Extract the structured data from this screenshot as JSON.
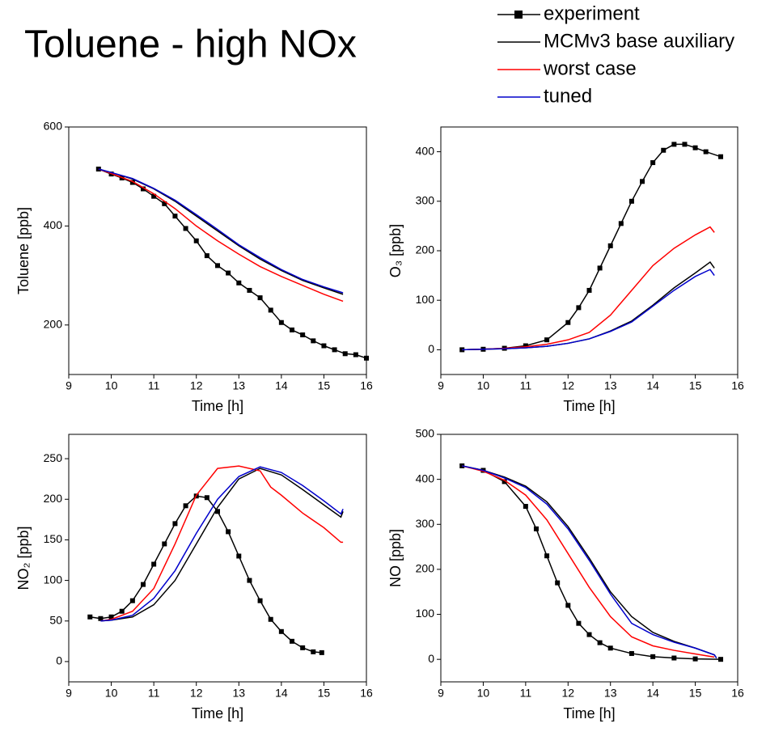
{
  "title": "Toluene - high NOx",
  "chart_data": [
    {
      "type": "line",
      "xlabel": "Time [h]",
      "ylabel": "Toluene [ppb]",
      "xlim": [
        9,
        16
      ],
      "ylim": [
        100,
        600
      ],
      "xticks": [
        9,
        10,
        11,
        12,
        13,
        14,
        15,
        16
      ],
      "yticks": [
        200,
        400,
        600
      ],
      "series": [
        {
          "name": "experiment",
          "color": "#000000",
          "marker": "square",
          "x": [
            9.7,
            10,
            10.25,
            10.5,
            10.75,
            11,
            11.25,
            11.5,
            11.75,
            12,
            12.25,
            12.5,
            12.75,
            13,
            13.25,
            13.5,
            13.75,
            14,
            14.25,
            14.5,
            14.75,
            15,
            15.25,
            15.5,
            15.75,
            16
          ],
          "values": [
            515,
            505,
            497,
            488,
            475,
            460,
            445,
            420,
            395,
            370,
            340,
            320,
            305,
            285,
            270,
            255,
            230,
            205,
            190,
            180,
            168,
            158,
            150,
            142,
            140,
            133
          ]
        },
        {
          "name": "MCMv3 base auxiliary",
          "color": "#000000",
          "x": [
            9.7,
            10,
            10.5,
            11,
            11.5,
            12,
            12.5,
            13,
            13.5,
            14,
            14.5,
            15,
            15.45
          ],
          "values": [
            515,
            508,
            495,
            475,
            450,
            420,
            390,
            360,
            333,
            310,
            290,
            275,
            262
          ]
        },
        {
          "name": "worst case",
          "color": "#ff0000",
          "x": [
            9.7,
            10,
            10.5,
            11,
            11.5,
            12,
            12.5,
            13,
            13.5,
            14,
            14.5,
            15,
            15.45
          ],
          "values": [
            515,
            506,
            490,
            465,
            435,
            400,
            370,
            343,
            318,
            298,
            280,
            262,
            248
          ]
        },
        {
          "name": "tuned",
          "color": "#0000cc",
          "x": [
            9.7,
            10,
            10.5,
            11,
            11.5,
            12,
            12.5,
            13,
            13.5,
            14,
            14.5,
            15,
            15.45
          ],
          "values": [
            515,
            508,
            496,
            476,
            452,
            423,
            393,
            362,
            336,
            312,
            292,
            277,
            265
          ]
        }
      ]
    },
    {
      "type": "line",
      "xlabel": "Time [h]",
      "ylabel": "O₃ [ppb]",
      "xlim": [
        9,
        16
      ],
      "ylim": [
        -50,
        450
      ],
      "xticks": [
        9,
        10,
        11,
        12,
        13,
        14,
        15,
        16
      ],
      "yticks": [
        0,
        100,
        200,
        300,
        400
      ],
      "series": [
        {
          "color": "#000000",
          "marker": "square",
          "x": [
            9.5,
            10,
            10.5,
            11,
            11.5,
            12,
            12.25,
            12.5,
            12.75,
            13,
            13.25,
            13.5,
            13.75,
            14,
            14.25,
            14.5,
            14.75,
            15,
            15.25,
            15.6
          ],
          "values": [
            0,
            1,
            3,
            8,
            20,
            55,
            85,
            120,
            165,
            210,
            255,
            300,
            340,
            378,
            403,
            415,
            415,
            408,
            400,
            390
          ]
        },
        {
          "color": "#000000",
          "x": [
            9.5,
            10,
            10.5,
            11,
            11.5,
            12,
            12.5,
            13,
            13.5,
            14,
            14.5,
            15,
            15.35,
            15.45
          ],
          "values": [
            0,
            1,
            2,
            4,
            7,
            13,
            22,
            38,
            58,
            90,
            125,
            155,
            177,
            165
          ]
        },
        {
          "color": "#ff0000",
          "x": [
            9.5,
            10,
            10.5,
            11,
            11.5,
            12,
            12.5,
            13,
            13.5,
            14,
            14.5,
            15,
            15.35,
            15.45
          ],
          "values": [
            0,
            1,
            3,
            6,
            11,
            20,
            35,
            70,
            120,
            170,
            205,
            232,
            248,
            237
          ]
        },
        {
          "color": "#0000cc",
          "x": [
            9.5,
            10,
            10.5,
            11,
            11.5,
            12,
            12.5,
            13,
            13.5,
            14,
            14.5,
            15,
            15.35,
            15.45
          ],
          "values": [
            0,
            1,
            2,
            4,
            7,
            13,
            22,
            37,
            56,
            88,
            120,
            148,
            162,
            150
          ]
        }
      ]
    },
    {
      "type": "line",
      "xlabel": "Time [h]",
      "ylabel": "NO₂ [ppb]",
      "xlim": [
        9,
        16
      ],
      "ylim": [
        -25,
        280
      ],
      "xticks": [
        9,
        10,
        11,
        12,
        13,
        14,
        15,
        16
      ],
      "yticks": [
        0,
        50,
        100,
        150,
        200,
        250
      ],
      "series": [
        {
          "color": "#000000",
          "marker": "square",
          "x": [
            9.5,
            9.75,
            10,
            10.25,
            10.5,
            10.75,
            11,
            11.25,
            11.5,
            11.75,
            12,
            12.25,
            12.5,
            12.75,
            13,
            13.25,
            13.5,
            13.75,
            14,
            14.25,
            14.5,
            14.75,
            14.95
          ],
          "values": [
            55,
            53,
            55,
            62,
            75,
            95,
            120,
            145,
            170,
            192,
            204,
            202,
            185,
            160,
            130,
            100,
            75,
            52,
            37,
            25,
            17,
            12,
            11
          ]
        },
        {
          "color": "#000000",
          "x": [
            9.75,
            10,
            10.5,
            11,
            11.5,
            12,
            12.5,
            13,
            13.5,
            14,
            14.5,
            15,
            15.4,
            15.45
          ],
          "values": [
            50,
            51,
            55,
            70,
            100,
            145,
            190,
            225,
            238,
            230,
            212,
            193,
            178,
            185
          ]
        },
        {
          "color": "#ff0000",
          "x": [
            9.75,
            10,
            10.5,
            11,
            11.5,
            12,
            12.5,
            13,
            13.5,
            13.75,
            14,
            14.5,
            15,
            15.4,
            15.45
          ],
          "values": [
            50,
            52,
            62,
            90,
            145,
            205,
            238,
            241,
            235,
            215,
            205,
            183,
            165,
            147,
            147
          ]
        },
        {
          "color": "#0000cc",
          "x": [
            9.75,
            10,
            10.5,
            11,
            11.5,
            12,
            12.5,
            13,
            13.5,
            14,
            14.5,
            15,
            15.4,
            15.45
          ],
          "values": [
            50,
            51,
            57,
            78,
            112,
            158,
            200,
            228,
            240,
            233,
            217,
            198,
            182,
            188
          ]
        }
      ]
    },
    {
      "type": "line",
      "xlabel": "Time [h]",
      "ylabel": "NO [ppb]",
      "xlim": [
        9,
        16
      ],
      "ylim": [
        -50,
        500
      ],
      "xticks": [
        9,
        10,
        11,
        12,
        13,
        14,
        15,
        16
      ],
      "yticks": [
        0,
        100,
        200,
        300,
        400,
        500
      ],
      "series": [
        {
          "color": "#000000",
          "marker": "square",
          "x": [
            9.5,
            10,
            10.5,
            11,
            11.25,
            11.5,
            11.75,
            12,
            12.25,
            12.5,
            12.75,
            13,
            13.5,
            14,
            14.5,
            15,
            15.6
          ],
          "values": [
            430,
            420,
            395,
            340,
            290,
            230,
            170,
            120,
            80,
            55,
            37,
            25,
            13,
            6,
            3,
            1,
            0
          ]
        },
        {
          "color": "#000000",
          "x": [
            9.5,
            10,
            10.5,
            11,
            11.5,
            12,
            12.5,
            13,
            13.5,
            14,
            14.5,
            15,
            15.45,
            15.5
          ],
          "values": [
            430,
            420,
            405,
            385,
            350,
            295,
            225,
            150,
            95,
            60,
            40,
            25,
            10,
            3
          ]
        },
        {
          "color": "#ff0000",
          "x": [
            9.5,
            10,
            10.5,
            11,
            11.5,
            12,
            12.5,
            13,
            13.5,
            14,
            14.5,
            15,
            15.45
          ],
          "values": [
            430,
            418,
            398,
            365,
            310,
            235,
            160,
            95,
            50,
            30,
            20,
            12,
            5
          ]
        },
        {
          "color": "#0000cc",
          "x": [
            9.5,
            10,
            10.5,
            11,
            11.5,
            12,
            12.5,
            13,
            13.5,
            14,
            14.5,
            15,
            15.45,
            15.5
          ],
          "values": [
            430,
            420,
            403,
            382,
            345,
            290,
            220,
            145,
            80,
            55,
            38,
            25,
            10,
            3
          ]
        }
      ]
    }
  ]
}
